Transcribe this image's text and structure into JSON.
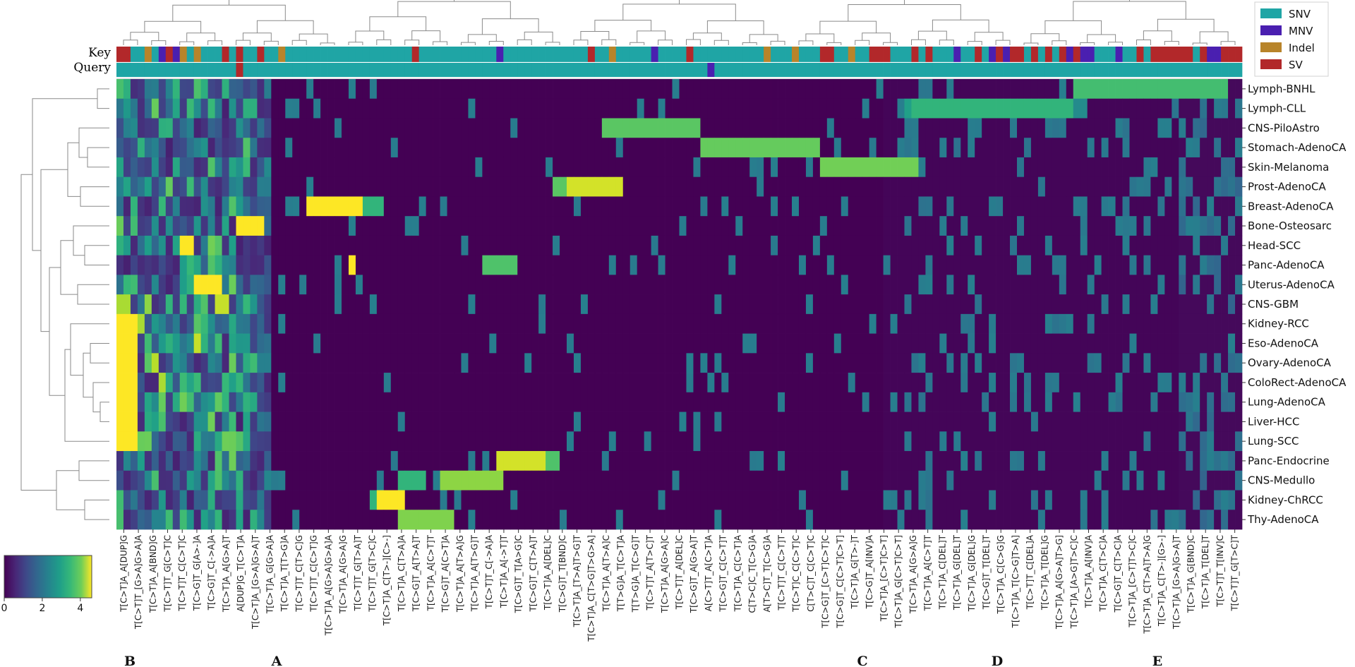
{
  "chart_data": {
    "type": "heatmap",
    "title": "",
    "xlabel": "",
    "ylabel": "",
    "row_annotations": [
      "Key",
      "Query"
    ],
    "legend": {
      "position": "top-right",
      "entries": [
        {
          "label": "SNV",
          "color": "#1fa5a5"
        },
        {
          "label": "MNV",
          "color": "#4a1fb0"
        },
        {
          "label": "Indel",
          "color": "#b8842a"
        },
        {
          "label": "SV",
          "color": "#b2282a"
        }
      ]
    },
    "colorbar": {
      "colormap": "viridis",
      "min": 0,
      "max": 4.6,
      "ticks": [
        0,
        2,
        4
      ]
    },
    "rows": [
      "Lymph-BNHL",
      "Lymph-CLL",
      "CNS-PiloAstro",
      "Stomach-AdenoCA",
      "Skin-Melanoma",
      "Prost-AdenoCA",
      "Breast-AdenoCA",
      "Bone-Osteosarc",
      "Head-SCC",
      "Panc-AdenoCA",
      "Uterus-AdenoCA",
      "CNS-GBM",
      "Kidney-RCC",
      "Eso-AdenoCA",
      "Ovary-AdenoCA",
      "ColoRect-AdenoCA",
      "Lung-AdenoCA",
      "Liver-HCC",
      "Lung-SCC",
      "Panc-Endocrine",
      "CNS-Medullo",
      "Kidney-ChRCC",
      "Thy-AdenoCA"
    ],
    "columns": [
      "T[C>T]A_A[DUP]G",
      "T[C>T]T_[G>A]G>A]A",
      "T[C>T]A_A[BND]G",
      "T[C>T]T_G[C>T]C",
      "T[C>T]T_C[C>T]C",
      "T[C>G]T_G[A>-]A",
      "T[C>G]T_C[->A]A",
      "T[C>T]A_A[G>A]T",
      "A[DUP]G_T[C>T]A",
      "T[C>T]A_[G>A]G>A]T",
      "T[C>T]A_G[G>A]A",
      "T[C>T]A_T[T>G]A",
      "T[C>T]T_C[T>C]G",
      "T[C>T]T_C[C>T]G",
      "T[C>T]A_A[G>A]G>A]A",
      "T[C>T]A_A[G>A]G",
      "T[C>T]T_G[T>A]T",
      "T[C>T]T_G[T>C]C",
      "T[C>T]A_C[T>-][C>-]",
      "T[C>T]A_C[T>A]A",
      "T[C>G]T_A[T>A]T",
      "T[C>T]A_A[C>T]T",
      "T[C>G]T_A[C>T]A",
      "T[C>T]A_A[T>A]G",
      "T[C>T]A_A[T>G]T",
      "T[C>T]T_C[->A]A",
      "T[C>T]A_A[->T]T",
      "T[C>G]T_T[A>G]C",
      "T[C>G]T_C[T>A]T",
      "T[C>T]A_A[DEL]C",
      "T[C>G]T_T[BND]C",
      "T[C>T]A_[T>A]T>G]T",
      "T[C>T]A_C[T>G]T>G>A]",
      "T[C>T]A_A[T>A]C",
      "T[T>G]A_T[C>T]A",
      "T[T>G]A_T[C>G]T",
      "T[C>T]T_A[T>C]T",
      "T[C>T]A_A[G>A]C",
      "T[C>T]T_A[DEL]C",
      "T[C>G]T_A[G>A]T",
      "A[C>T]T_A[C>T]A",
      "T[C>G]T_C[C>T]T",
      "T[C>T]A_C[C>T]A",
      "C[T>C]C_T[C>G]A",
      "A[T>C]T_T[C>G]A",
      "T[C>T]T_C[C>T]T",
      "T[C>T]C_C[C>T]C",
      "C[T>C]T_C[C>T]C",
      "T[C>G]T_[C>T]C>T]C",
      "T[C>G]T_C[C>T]C>T]",
      "T[C>T]A_G[T>-]T",
      "T[C>G]T_A[INV]A",
      "T[C>T]A_[C>T]C>T]",
      "T[C>T]A_G[C>T]C>T]",
      "T[C>T]A_A[G>A]G",
      "T[C>T]A_A[C>T]T",
      "T[C>T]A_C[DEL]T",
      "T[C>T]A_G[DEL]T",
      "T[C>T]A_G[DEL]G",
      "T[C>G]T_T[DEL]T",
      "T[C>T]A_C[C>G]G",
      "T[C>T]A_T[C>G]T>A]",
      "T[C>T]T_C[DEL]A",
      "T[C>T]A_T[DEL]G",
      "T[C>T]A_A[G>A]T>G]",
      "T[C>T]A_[A>G]T>C]C",
      "T[C>T]A_A[INV]A",
      "T[C>T]A_C[T>C]A",
      "T[C>G]T_C[T>C]A",
      "T[C>T]A_[C>T]T>C]C",
      "T[C>T]A_C[T>A]T>A]G",
      "T[C>T]A_C[T>-][G>-]",
      "T[C>T]A_[G>A]G>A]T",
      "T[C>T]A_G[BND]C",
      "T[C>T]A_T[DEL]T",
      "T[C>T]T_T[INV]C",
      "T[C>T]T_G[T>C]T"
    ],
    "column_groups": [
      {
        "label": "B"
      },
      {
        "label": "A"
      },
      {
        "label": "C"
      },
      {
        "label": "D"
      },
      {
        "label": "E"
      }
    ]
  }
}
